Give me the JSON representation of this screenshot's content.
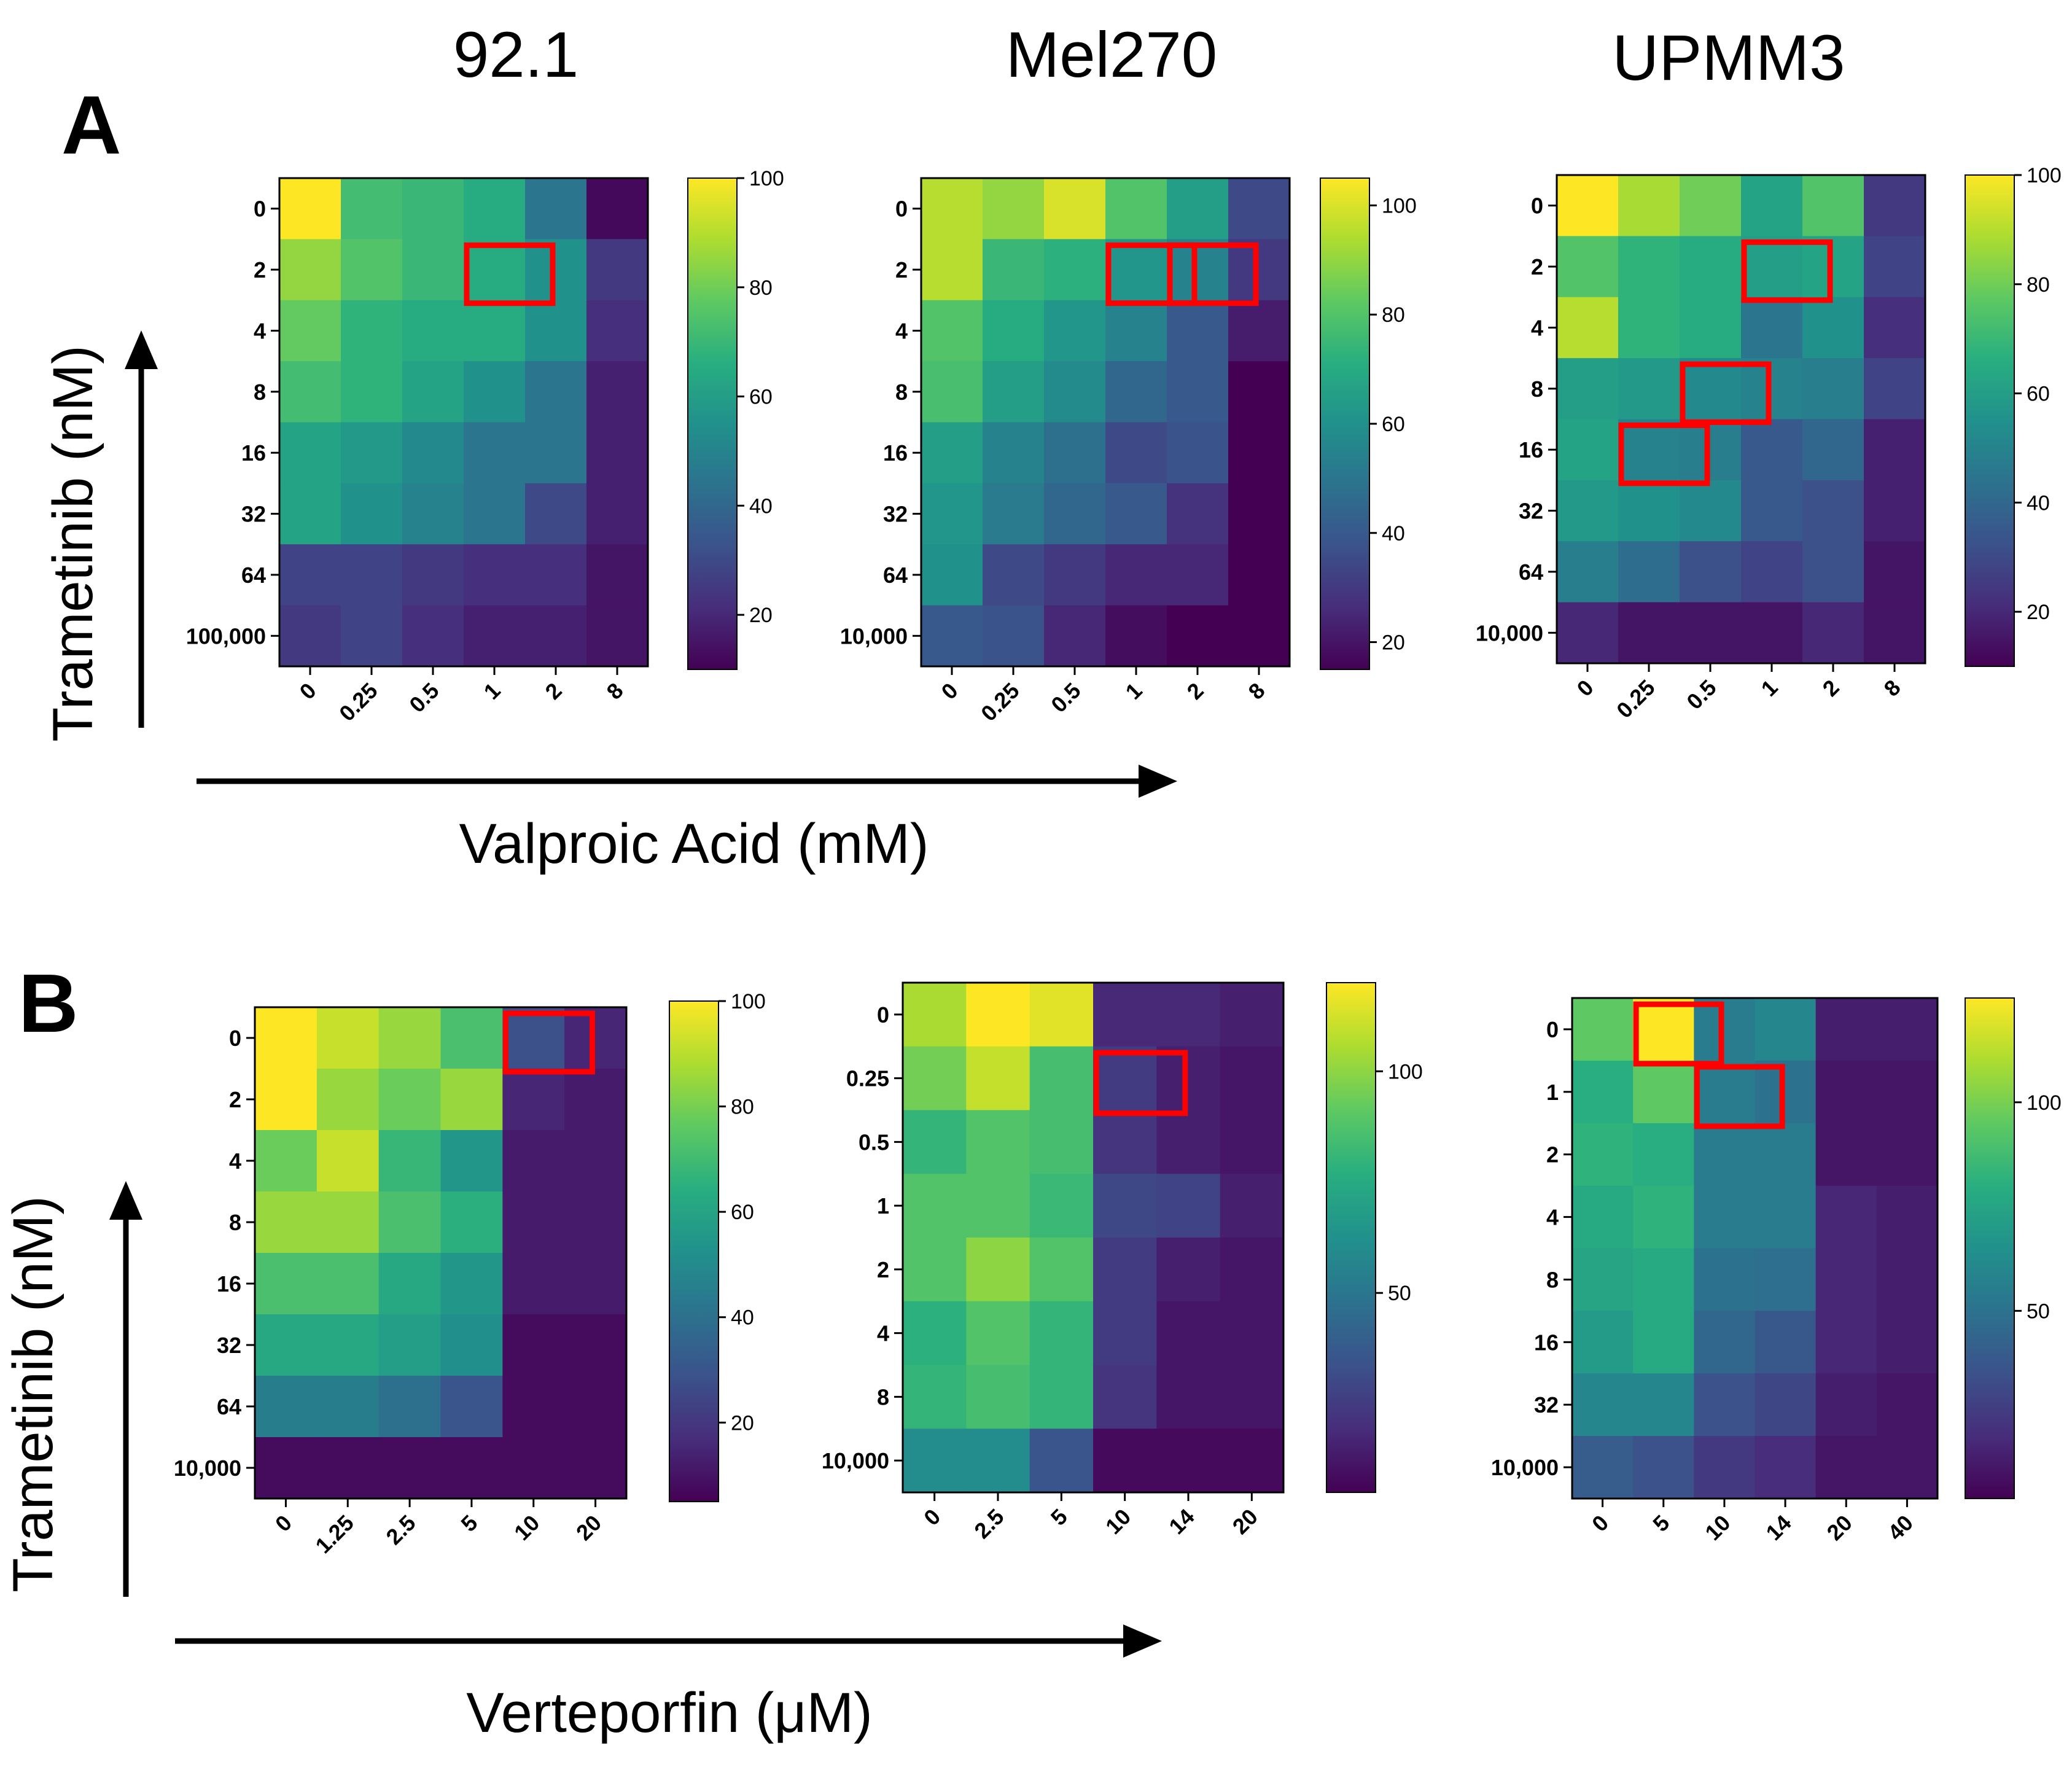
{
  "figure": {
    "column_titles": [
      "92.1",
      "Mel270",
      "UPMM3"
    ],
    "panel_labels": [
      "A",
      "B"
    ],
    "y_axis_title": "Trametinib (nM)",
    "x_axis_titles": [
      "Valproic Acid (mM)",
      "Verteporfin (μM)"
    ],
    "colors": {
      "highlight": "#ff0000",
      "colormap": "viridis"
    }
  },
  "chart_data": [
    {
      "type": "heatmap",
      "panel": "A",
      "cell_line": "92.1",
      "xlabel": "Valproic Acid (mM)",
      "ylabel": "Trametinib (nM)",
      "x": [
        "0",
        "0.25",
        "0.5",
        "1",
        "2",
        "8"
      ],
      "y": [
        "0",
        "2",
        "4",
        "8",
        "16",
        "32",
        "64",
        "100,000"
      ],
      "values": [
        [
          100,
          72,
          70,
          65,
          45,
          12
        ],
        [
          85,
          75,
          70,
          65,
          55,
          25
        ],
        [
          78,
          68,
          65,
          65,
          55,
          22
        ],
        [
          72,
          68,
          62,
          55,
          45,
          18
        ],
        [
          62,
          58,
          52,
          45,
          45,
          18
        ],
        [
          62,
          55,
          50,
          45,
          30,
          18
        ],
        [
          28,
          28,
          25,
          22,
          22,
          15
        ],
        [
          25,
          28,
          22,
          18,
          18,
          15
        ]
      ],
      "colorbar": {
        "min": 10,
        "max": 100,
        "ticks": [
          20,
          40,
          60,
          80,
          100
        ]
      },
      "highlighted_cells": [
        {
          "x": "1",
          "y": "2"
        }
      ]
    },
    {
      "type": "heatmap",
      "panel": "A",
      "cell_line": "Mel270",
      "xlabel": "Valproic Acid (mM)",
      "ylabel": "Trametinib (nM)",
      "x": [
        "0",
        "0.25",
        "0.5",
        "1",
        "2",
        "8"
      ],
      "y": [
        "0",
        "2",
        "4",
        "8",
        "16",
        "32",
        "64",
        "10,000"
      ],
      "values": [
        [
          95,
          90,
          100,
          80,
          65,
          35
        ],
        [
          95,
          75,
          72,
          62,
          55,
          30
        ],
        [
          80,
          70,
          62,
          55,
          40,
          22
        ],
        [
          78,
          65,
          58,
          45,
          40,
          15
        ],
        [
          65,
          55,
          48,
          35,
          38,
          15
        ],
        [
          62,
          52,
          45,
          40,
          28,
          15
        ],
        [
          60,
          35,
          30,
          25,
          25,
          12
        ],
        [
          40,
          38,
          25,
          18,
          12,
          12
        ]
      ],
      "colorbar": {
        "min": 15,
        "max": 105,
        "ticks": [
          20,
          40,
          60,
          80,
          100
        ]
      },
      "highlighted_cells": [
        {
          "x": "1",
          "y": "2"
        },
        {
          "x": "2",
          "y": "2"
        }
      ]
    },
    {
      "type": "heatmap",
      "panel": "A",
      "cell_line": "UPMM3",
      "xlabel": "Valproic Acid (mM)",
      "ylabel": "Trametinib (nM)",
      "x": [
        "0",
        "0.25",
        "0.5",
        "1",
        "2",
        "8"
      ],
      "y": [
        "0",
        "2",
        "4",
        "8",
        "16",
        "32",
        "64",
        "10,000"
      ],
      "values": [
        [
          100,
          88,
          80,
          62,
          75,
          25
        ],
        [
          75,
          68,
          65,
          60,
          62,
          28
        ],
        [
          90,
          68,
          65,
          45,
          55,
          22
        ],
        [
          60,
          58,
          52,
          50,
          48,
          28
        ],
        [
          62,
          50,
          48,
          35,
          40,
          18
        ],
        [
          58,
          55,
          52,
          35,
          32,
          18
        ],
        [
          48,
          42,
          32,
          28,
          32,
          15
        ],
        [
          20,
          15,
          15,
          15,
          20,
          15
        ]
      ],
      "colorbar": {
        "min": 10,
        "max": 100,
        "ticks": [
          20,
          40,
          60,
          80,
          100
        ]
      },
      "highlighted_cells": [
        {
          "x": "1",
          "y": "2"
        },
        {
          "x": "0.5",
          "y": "8"
        },
        {
          "x": "0.25",
          "y": "16"
        }
      ]
    },
    {
      "type": "heatmap",
      "panel": "B",
      "cell_line": "92.1",
      "xlabel": "Verteporfin (μM)",
      "ylabel": "Trametinib (nM)",
      "x": [
        "0",
        "1.25",
        "2.5",
        "5",
        "10",
        "20"
      ],
      "y": [
        "0",
        "2",
        "4",
        "8",
        "16",
        "32",
        "64",
        "10,000"
      ],
      "values": [
        [
          100,
          92,
          85,
          72,
          28,
          15
        ],
        [
          100,
          85,
          78,
          85,
          15,
          12
        ],
        [
          78,
          92,
          68,
          55,
          12,
          12
        ],
        [
          85,
          85,
          72,
          65,
          12,
          12
        ],
        [
          72,
          72,
          62,
          55,
          12,
          12
        ],
        [
          62,
          62,
          58,
          52,
          8,
          8
        ],
        [
          45,
          45,
          40,
          30,
          8,
          8
        ],
        [
          8,
          8,
          8,
          8,
          8,
          8
        ]
      ],
      "colorbar": {
        "min": 5,
        "max": 100,
        "ticks": [
          20,
          40,
          60,
          80,
          100
        ]
      },
      "highlighted_cells": [
        {
          "x": "10",
          "y": "0"
        }
      ]
    },
    {
      "type": "heatmap",
      "panel": "B",
      "cell_line": "Mel270",
      "xlabel": "Verteporfin (μM)",
      "ylabel": "Trametinib (nM)",
      "x": [
        "0",
        "2.5",
        "5",
        "10",
        "14",
        "20"
      ],
      "y": [
        "0",
        "0.25",
        "0.5",
        "1",
        "2",
        "4",
        "8",
        "10,000"
      ],
      "values": [
        [
          105,
          120,
          115,
          18,
          18,
          15
        ],
        [
          95,
          110,
          85,
          25,
          15,
          12
        ],
        [
          80,
          88,
          85,
          22,
          15,
          12
        ],
        [
          88,
          88,
          82,
          30,
          28,
          15
        ],
        [
          88,
          100,
          88,
          25,
          15,
          12
        ],
        [
          78,
          88,
          80,
          25,
          12,
          12
        ],
        [
          80,
          85,
          80,
          22,
          12,
          12
        ],
        [
          60,
          60,
          35,
          8,
          8,
          8
        ]
      ],
      "colorbar": {
        "min": 5,
        "max": 120,
        "ticks": [
          50,
          100
        ]
      },
      "highlighted_cells": [
        {
          "x": "10",
          "y": "0.25"
        }
      ]
    },
    {
      "type": "heatmap",
      "panel": "B",
      "cell_line": "UPMM3",
      "xlabel": "Verteporfin (μM)",
      "ylabel": "Trametinib (nM)",
      "x": [
        "0",
        "5",
        "10",
        "14",
        "20",
        "40"
      ],
      "y": [
        "0",
        "1",
        "2",
        "4",
        "8",
        "16",
        "32",
        "10,000"
      ],
      "values": [
        [
          95,
          125,
          55,
          60,
          15,
          15
        ],
        [
          80,
          95,
          55,
          50,
          12,
          12
        ],
        [
          82,
          80,
          55,
          55,
          12,
          12
        ],
        [
          78,
          82,
          55,
          55,
          18,
          15
        ],
        [
          75,
          78,
          50,
          48,
          18,
          15
        ],
        [
          70,
          78,
          45,
          38,
          18,
          15
        ],
        [
          60,
          60,
          35,
          30,
          15,
          12
        ],
        [
          40,
          35,
          25,
          20,
          12,
          12
        ]
      ],
      "colorbar": {
        "min": 5,
        "max": 125,
        "ticks": [
          50,
          100
        ]
      },
      "highlighted_cells": [
        {
          "x": "5",
          "y": "0"
        },
        {
          "x": "10",
          "y": "1"
        }
      ]
    }
  ]
}
